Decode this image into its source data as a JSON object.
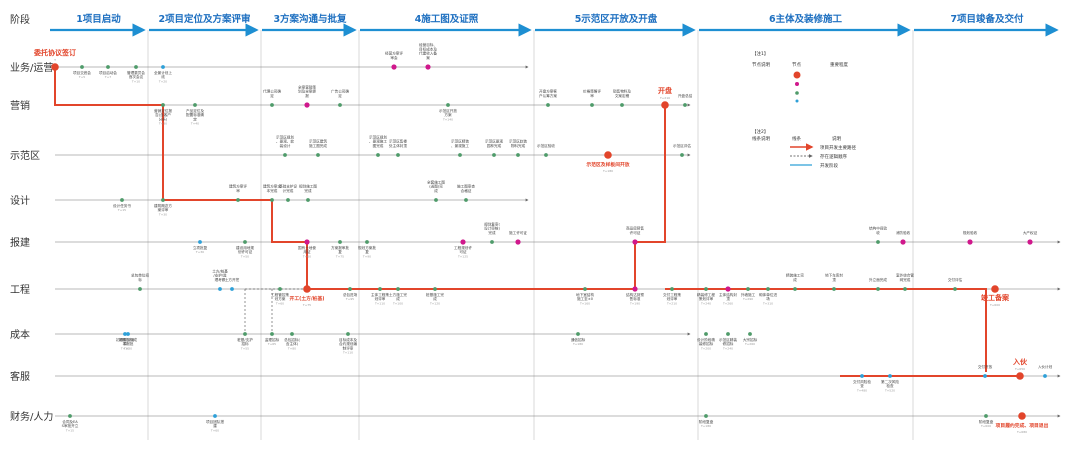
{
  "header": {
    "stage_label": "阶段",
    "phases": [
      "1项目启动",
      "2项目定位及方案评审",
      "3方案沟通与批复",
      "4施工图及证照",
      "5示范区开放及开盘",
      "6主体及装修施工",
      "7项目竣备及交付"
    ]
  },
  "lanes": [
    "业务/运营",
    "营销",
    "示范区",
    "设计",
    "报建",
    "工程",
    "成本",
    "客服",
    "财务/人力"
  ],
  "legend": {
    "note1": "【注1】",
    "node_desc": "节点说明",
    "node": "节点",
    "importance": "重要程度",
    "note2": "【注2】",
    "line_desc": "线条说明",
    "line": "线条",
    "description": "说明",
    "items": [
      "项目开发主要路径",
      "存在逻辑顺序",
      "开发阶段"
    ]
  },
  "nodes": [
    {
      "id": "n1",
      "lane": 0,
      "label": "委托协议签订",
      "sub": "T",
      "color": "#e2452b",
      "key": true
    },
    {
      "id": "n2",
      "lane": 0,
      "label": "项目交底会",
      "sub": "T+5",
      "color": "#4f9b6a"
    },
    {
      "id": "n3",
      "lane": 0,
      "label": "项目启动会",
      "sub": "T+7",
      "color": "#4f9b6a"
    },
    {
      "id": "n4",
      "lane": 0,
      "label": "管理委员会首次会议",
      "sub": "T+10",
      "color": "#4f9b6a"
    },
    {
      "id": "n5",
      "lane": 0,
      "label": "全景计划上线",
      "sub": "T+20",
      "color": "#2ea0d8"
    },
    {
      "id": "n6",
      "lane": 0,
      "label": "经营方案评审会",
      "sub": "T+110",
      "color": "#d0188c"
    },
    {
      "id": "n7",
      "lane": 0,
      "label": "经营目标、目标成本及代建收入备案",
      "sub": "T+120",
      "color": "#d0188c"
    },
    {
      "id": "n8",
      "lane": 1,
      "label": "营销定位报告(含客户分析)",
      "sub": "T+30",
      "color": "#4f9b6a"
    },
    {
      "id": "n9",
      "lane": 1,
      "label": "产品定位及配置标准确定",
      "sub": "T+40",
      "color": "#4f9b6a"
    },
    {
      "id": "n10",
      "lane": 1,
      "label": "代理公司确定",
      "sub": "T+60",
      "color": "#4f9b6a"
    },
    {
      "id": "n11",
      "lane": 1,
      "label": "全案营销策划及全案提报",
      "sub": "T+70",
      "color": "#d0188c"
    },
    {
      "id": "n12",
      "lane": 1,
      "label": "广告公司确定",
      "sub": "T+80",
      "color": "#4f9b6a"
    },
    {
      "id": "n13",
      "lane": 1,
      "label": "示范区开放方案",
      "sub": "T+140",
      "color": "#4f9b6a"
    },
    {
      "id": "n14",
      "lane": 1,
      "label": "开盘方案客户认筹方案",
      "sub": "T+170",
      "color": "#4f9b6a"
    },
    {
      "id": "n15",
      "lane": 1,
      "label": "价格策略评审",
      "sub": "T+175",
      "color": "#4f9b6a"
    },
    {
      "id": "n16",
      "lane": 1,
      "label": "销售物料及文案定稿",
      "sub": "T+180",
      "color": "#4f9b6a"
    },
    {
      "id": "n17",
      "lane": 1,
      "label": "开盘",
      "sub": "T+210",
      "color": "#e2452b",
      "key": true
    },
    {
      "id": "n18",
      "lane": 1,
      "label": "开盘总结",
      "sub": "T+230",
      "color": "#4f9b6a"
    },
    {
      "id": "n19",
      "lane": 2,
      "label": "示范区规划、景观、软装设计",
      "sub": "T+70",
      "color": "#4f9b6a"
    },
    {
      "id": "n20",
      "lane": 2,
      "label": "示范区建筑施工图完成",
      "sub": "T+80",
      "color": "#4f9b6a"
    },
    {
      "id": "n21",
      "lane": 2,
      "label": "示范区规划、景观施工图完成",
      "sub": "T+100",
      "color": "#4f9b6a"
    },
    {
      "id": "n22",
      "lane": 2,
      "label": "示范区售楼处主体封顶",
      "sub": "T+110",
      "color": "#4f9b6a"
    },
    {
      "id": "n23",
      "lane": 2,
      "label": "示范区精装、景观施工",
      "sub": "T+130",
      "color": "#4f9b6a"
    },
    {
      "id": "n24",
      "lane": 2,
      "label": "示范区景观园林完成",
      "sub": "T+150",
      "color": "#4f9b6a"
    },
    {
      "id": "n25",
      "lane": 2,
      "label": "示范区软装物料完成",
      "sub": "T+165",
      "color": "#4f9b6a"
    },
    {
      "id": "n26",
      "lane": 2,
      "label": "示范区验收",
      "sub": "T+170",
      "color": "#4f9b6a"
    },
    {
      "id": "n27",
      "lane": 2,
      "label": "示范区及样板间开放",
      "sub": "T+180",
      "color": "#e2452b",
      "key": true
    },
    {
      "id": "n28",
      "lane": 2,
      "label": "示范区评估",
      "sub": "T+230",
      "color": "#4f9b6a"
    },
    {
      "id": "n29",
      "lane": 3,
      "label": "设计任务书",
      "sub": "T+15",
      "color": "#4f9b6a"
    },
    {
      "id": "n30",
      "lane": 3,
      "label": "建筑概念方案评审",
      "sub": "T+30",
      "color": "#4f9b6a"
    },
    {
      "id": "n31",
      "lane": 3,
      "label": "建筑方案评审",
      "sub": "T+50",
      "color": "#4f9b6a"
    },
    {
      "id": "n32",
      "lane": 3,
      "label": "建筑方案文本完成",
      "sub": "T+60",
      "color": "#4f9b6a"
    },
    {
      "id": "n33",
      "lane": 3,
      "label": "基础支护设计完成",
      "sub": "T+75",
      "color": "#4f9b6a"
    },
    {
      "id": "n34",
      "lane": 3,
      "label": "规划施工图完成",
      "sub": "T+85",
      "color": "#4f9b6a"
    },
    {
      "id": "n35",
      "lane": 3,
      "label": "全套施工图(送图)完成",
      "sub": "T+125",
      "color": "#4f9b6a"
    },
    {
      "id": "n36",
      "lane": 3,
      "label": "施工图审查合格证",
      "sub": "T+135",
      "color": "#4f9b6a"
    },
    {
      "id": "n37",
      "lane": 4,
      "label": "立项批复",
      "sub": "T+30",
      "color": "#2ea0d8"
    },
    {
      "id": "n38",
      "lane": 4,
      "label": "建设用地规划许可证",
      "sub": "T+50",
      "color": "#4f9b6a"
    },
    {
      "id": "n39",
      "lane": 4,
      "label": "国有土地使用证",
      "sub": "T+60",
      "color": "#d0188c"
    },
    {
      "id": "n40",
      "lane": 4,
      "label": "方案报审批复",
      "sub": "T+75",
      "color": "#4f9b6a"
    },
    {
      "id": "n41",
      "lane": 4,
      "label": "规划方案批复",
      "sub": "T+90",
      "color": "#4f9b6a"
    },
    {
      "id": "n42",
      "lane": 4,
      "label": "工程规划许可证",
      "sub": "T+125",
      "color": "#d0188c"
    },
    {
      "id": "n43",
      "lane": 4,
      "label": "规划复审(设计审核)完成",
      "sub": "T+140",
      "color": "#4f9b6a"
    },
    {
      "id": "n44",
      "lane": 4,
      "label": "施工许可证",
      "sub": "T+150",
      "color": "#d0188c"
    },
    {
      "id": "n45",
      "lane": 4,
      "label": "商品房预售许可证",
      "sub": "T+200",
      "color": "#d0188c"
    },
    {
      "id": "n46",
      "lane": 4,
      "label": "结构中间验收",
      "sub": "T+500",
      "color": "#4f9b6a"
    },
    {
      "id": "n47",
      "lane": 4,
      "label": "消防验收",
      "sub": "T+540",
      "color": "#d0188c"
    },
    {
      "id": "n48",
      "lane": 4,
      "label": "规划验收",
      "sub": "T+580",
      "color": "#d0188c"
    },
    {
      "id": "n49",
      "lane": 4,
      "label": "大产权证",
      "sub": "T+730",
      "color": "#d0188c"
    },
    {
      "id": "n50",
      "lane": 5,
      "label": "总包单位招标",
      "sub": "T+45",
      "color": "#4f9b6a"
    },
    {
      "id": "n51",
      "lane": 5,
      "label": "工程管控策划方案",
      "sub": "T+60",
      "color": "#4f9b6a"
    },
    {
      "id": "n52",
      "lane": 5,
      "label": "土方/桩基/支护/监理考察",
      "sub": "T+40",
      "color": "#2ea0d8"
    },
    {
      "id": "n53",
      "lane": 5,
      "label": "土方开挖",
      "sub": "T+55",
      "color": "#2ea0d8"
    },
    {
      "id": "n54",
      "lane": 5,
      "label": "开工(土方/桩基)",
      "sub": "T+75",
      "color": "#e2452b",
      "key": true
    },
    {
      "id": "n55",
      "lane": 5,
      "label": "土方施工完成",
      "sub": "T+100",
      "color": "#4f9b6a"
    },
    {
      "id": "n56",
      "lane": 5,
      "label": "总包进场",
      "sub": "T+95",
      "color": "#4f9b6a"
    },
    {
      "id": "n57",
      "lane": 5,
      "label": "主体工程策划评审",
      "sub": "T+110",
      "color": "#4f9b6a"
    },
    {
      "id": "n58",
      "lane": 5,
      "label": "桩基施工完成",
      "sub": "T+120",
      "color": "#4f9b6a"
    },
    {
      "id": "n59",
      "lane": 5,
      "label": "地下室结构施工至±0",
      "sub": "T+160",
      "color": "#4f9b6a"
    },
    {
      "id": "n60",
      "lane": 5,
      "label": "结构达到预售标准",
      "sub": "T+190",
      "color": "#d0188c"
    },
    {
      "id": "n61",
      "lane": 5,
      "label": "交付工程策划评审",
      "sub": "T+210",
      "color": "#4f9b6a"
    },
    {
      "id": "n62",
      "lane": 5,
      "label": "精装修工程策划评审",
      "sub": "T+240",
      "color": "#4f9b6a"
    },
    {
      "id": "n63",
      "lane": 5,
      "label": "主体结构封顶",
      "sub": "T+260",
      "color": "#d0188c"
    },
    {
      "id": "n64",
      "lane": 5,
      "label": "外墙施工",
      "sub": "T+290",
      "color": "#4f9b6a"
    },
    {
      "id": "n65",
      "lane": 5,
      "label": "砌体单位进场",
      "sub": "T+310",
      "color": "#4f9b6a"
    },
    {
      "id": "n66",
      "lane": 5,
      "label": "精装施工完成",
      "sub": "T+350",
      "color": "#4f9b6a"
    },
    {
      "id": "n67",
      "lane": 5,
      "label": "地下车库封顶",
      "sub": "T+400",
      "color": "#4f9b6a"
    },
    {
      "id": "n68",
      "lane": 5,
      "label": "外立面完成",
      "sub": "T+450",
      "color": "#4f9b6a"
    },
    {
      "id": "n69",
      "lane": 5,
      "label": "室外综合管网完成",
      "sub": "T+520",
      "color": "#4f9b6a"
    },
    {
      "id": "n70",
      "lane": 5,
      "label": "交付评估",
      "sub": "T+580",
      "color": "#4f9b6a"
    },
    {
      "id": "n71",
      "lane": 5,
      "label": "竣工备案",
      "sub": "T+600",
      "color": "#e2452b",
      "key": true
    },
    {
      "id": "n72",
      "lane": 6,
      "label": "初期财务测算",
      "sub": "T+10",
      "color": "#2ea0d8"
    },
    {
      "id": "n73",
      "lane": 6,
      "label": "初期目标成本报批",
      "sub": "T+30",
      "color": "#2ea0d8"
    },
    {
      "id": "n74",
      "lane": 6,
      "label": "桩基/支护招标",
      "sub": "T+55",
      "color": "#4f9b6a"
    },
    {
      "id": "n75",
      "lane": 6,
      "label": "监理招标",
      "sub": "T+65",
      "color": "#4f9b6a"
    },
    {
      "id": "n76",
      "lane": 6,
      "label": "总包招标(含主体)",
      "sub": "T+80",
      "color": "#4f9b6a"
    },
    {
      "id": "n77",
      "lane": 6,
      "label": "目标成本及合约规划编制评审",
      "sub": "T+110",
      "color": "#4f9b6a"
    },
    {
      "id": "n78",
      "lane": 6,
      "label": "通信招标",
      "sub": "T+180",
      "color": "#4f9b6a"
    },
    {
      "id": "n79",
      "lane": 6,
      "label": "设计阶段精装修招标",
      "sub": "T+200",
      "color": "#4f9b6a"
    },
    {
      "id": "n80",
      "lane": 6,
      "label": "示范区精装修招标",
      "sub": "T+240",
      "color": "#4f9b6a"
    },
    {
      "id": "n81",
      "lane": 6,
      "label": "大宗招标",
      "sub": "T+260",
      "color": "#4f9b6a"
    },
    {
      "id": "n82",
      "lane": 7,
      "label": "交付风险检查",
      "sub": "T+480",
      "color": "#2ea0d8"
    },
    {
      "id": "n83",
      "lane": 7,
      "label": "第二次风险检查",
      "sub": "T+520",
      "color": "#2ea0d8"
    },
    {
      "id": "n84",
      "lane": 7,
      "label": "交付开放",
      "sub": "T+600",
      "color": "#2ea0d8"
    },
    {
      "id": "n85",
      "lane": 7,
      "label": "入伙",
      "sub": "T+650",
      "color": "#e2452b",
      "key": true
    },
    {
      "id": "n86",
      "lane": 7,
      "label": "入伙计划",
      "sub": "T+700",
      "color": "#2ea0d8"
    },
    {
      "id": "n87",
      "lane": 8,
      "label": "合同及EAS审批开立",
      "sub": "T+15",
      "color": "#4f9b6a"
    },
    {
      "id": "n88",
      "lane": 8,
      "label": "项目团队搭建",
      "sub": "T+60",
      "color": "#2ea0d8"
    },
    {
      "id": "n89",
      "lane": 8,
      "label": "阶段复盘",
      "sub": "T+180",
      "color": "#4f9b6a"
    },
    {
      "id": "n90",
      "lane": 8,
      "label": "阶段复盘",
      "sub": "T+600",
      "color": "#4f9b6a"
    },
    {
      "id": "n91",
      "lane": 8,
      "label": "项目履约完成、项目退出",
      "sub": "T+680",
      "color": "#e2452b",
      "key": true
    }
  ]
}
